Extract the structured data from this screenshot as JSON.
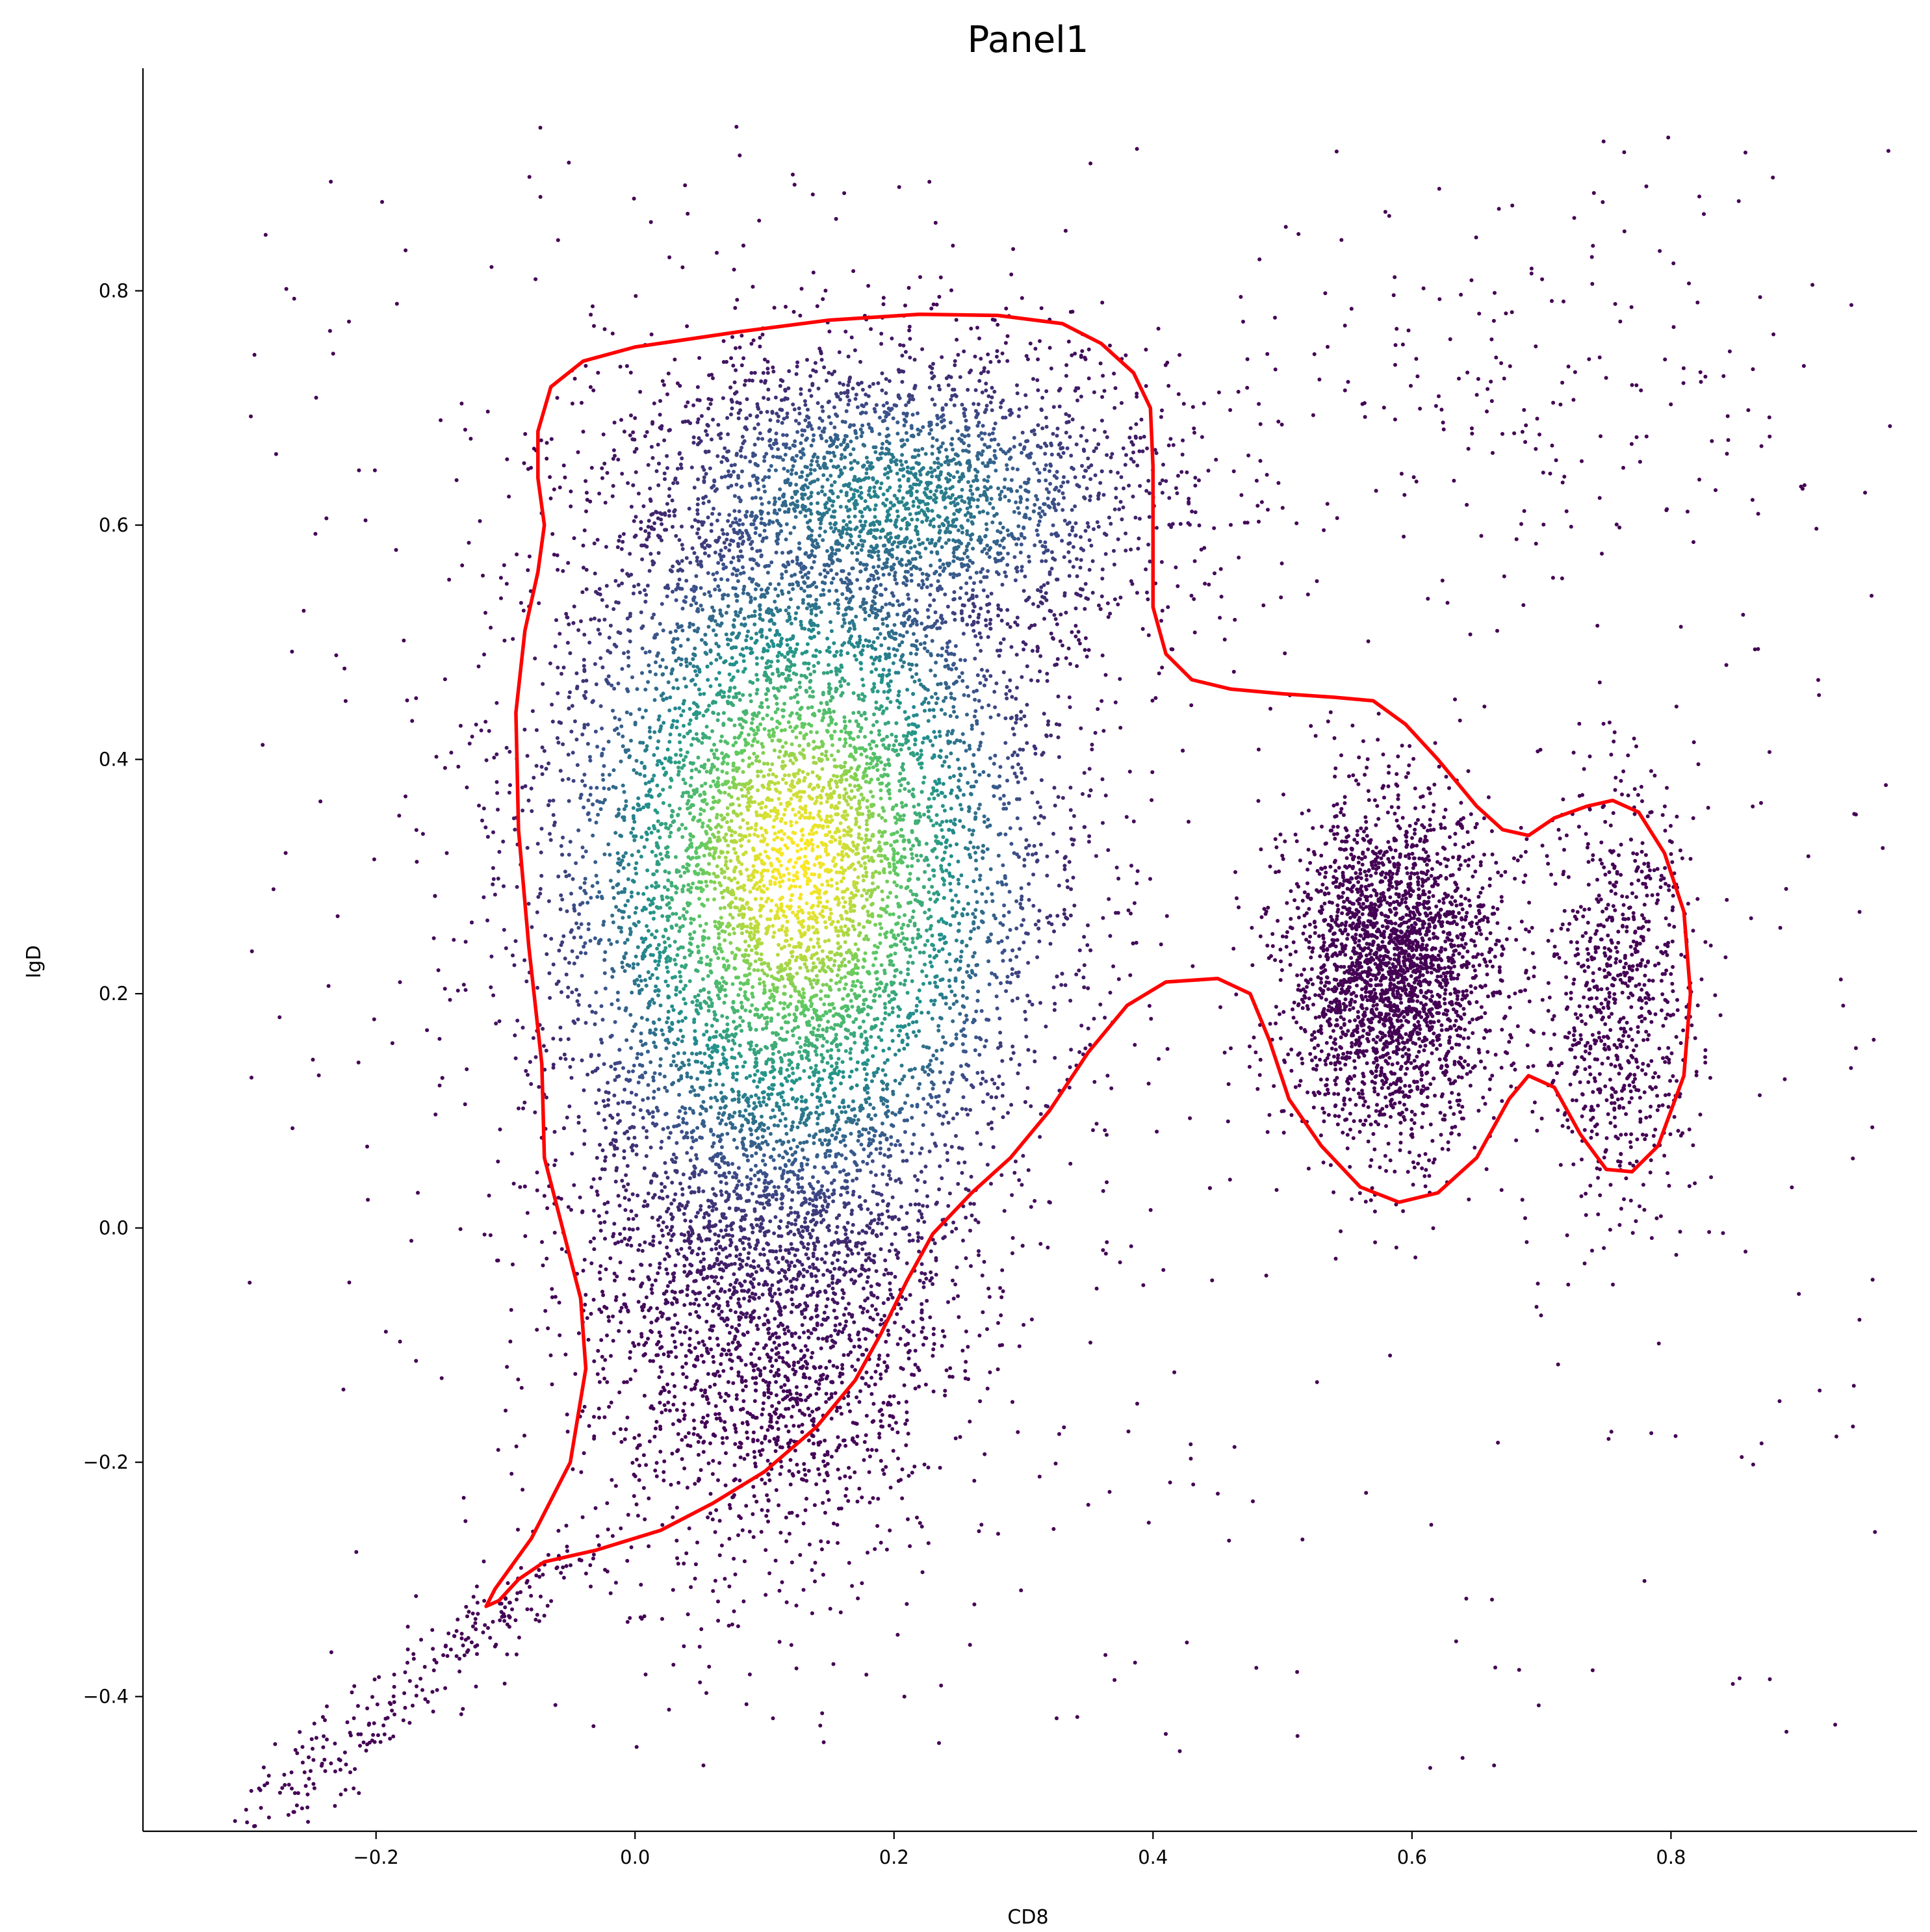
{
  "chart_data": {
    "type": "scatter",
    "title": "Panel1",
    "xlabel": "CD8",
    "ylabel": "IgD",
    "xlim": [
      -0.38,
      0.99
    ],
    "ylim": [
      -0.515,
      0.99
    ],
    "xticks": [
      -0.2,
      0.0,
      0.2,
      0.4,
      0.6,
      0.8
    ],
    "xtick_labels": [
      "−0.2",
      "0.0",
      "0.2",
      "0.4",
      "0.6",
      "0.8"
    ],
    "yticks": [
      -0.4,
      -0.2,
      0.0,
      0.2,
      0.4,
      0.6,
      0.8
    ],
    "ytick_labels": [
      "−0.4",
      "−0.2",
      "0.0",
      "0.2",
      "0.4",
      "0.6",
      "0.8"
    ],
    "grid": false,
    "colormap": "viridis",
    "colormap_stops": [
      "#440154",
      "#3b528b",
      "#21918c",
      "#5ec962",
      "#fde725"
    ],
    "clusters": [
      {
        "name": "",
        "center": [
          0.125,
          0.31
        ],
        "spread": [
          0.1,
          0.16
        ],
        "density": "high"
      },
      {
        "name": "",
        "center": [
          0.2,
          0.62
        ],
        "spread": [
          0.11,
          0.07
        ],
        "density": "medium"
      },
      {
        "name": "",
        "center": [
          0.1,
          -0.05
        ],
        "spread": [
          0.07,
          0.12
        ],
        "density": "medium"
      },
      {
        "name": "",
        "center": [
          0.585,
          0.22
        ],
        "spread": [
          0.04,
          0.07
        ],
        "density": "medium"
      },
      {
        "name": "",
        "center": [
          0.76,
          0.2
        ],
        "spread": [
          0.03,
          0.09
        ],
        "density": "low"
      },
      {
        "name": "",
        "center": [
          0.68,
          0.7
        ],
        "spread": [
          0.12,
          0.08
        ],
        "density": "sparse"
      }
    ],
    "gate": {
      "color": "#ff0000",
      "points": [
        [
          -0.115,
          -0.323
        ],
        [
          -0.105,
          -0.318
        ],
        [
          -0.09,
          -0.3
        ],
        [
          -0.07,
          -0.285
        ],
        [
          -0.03,
          -0.275
        ],
        [
          0.02,
          -0.258
        ],
        [
          0.06,
          -0.235
        ],
        [
          0.1,
          -0.208
        ],
        [
          0.14,
          -0.17
        ],
        [
          0.17,
          -0.13
        ],
        [
          0.19,
          -0.09
        ],
        [
          0.21,
          -0.045
        ],
        [
          0.23,
          -0.005
        ],
        [
          0.26,
          0.03
        ],
        [
          0.29,
          0.06
        ],
        [
          0.32,
          0.1
        ],
        [
          0.35,
          0.15
        ],
        [
          0.38,
          0.19
        ],
        [
          0.41,
          0.21
        ],
        [
          0.45,
          0.213
        ],
        [
          0.475,
          0.2
        ],
        [
          0.49,
          0.16
        ],
        [
          0.505,
          0.11
        ],
        [
          0.53,
          0.07
        ],
        [
          0.56,
          0.035
        ],
        [
          0.59,
          0.022
        ],
        [
          0.62,
          0.03
        ],
        [
          0.65,
          0.06
        ],
        [
          0.675,
          0.11
        ],
        [
          0.69,
          0.13
        ],
        [
          0.71,
          0.12
        ],
        [
          0.73,
          0.08
        ],
        [
          0.75,
          0.05
        ],
        [
          0.77,
          0.048
        ],
        [
          0.79,
          0.07
        ],
        [
          0.81,
          0.13
        ],
        [
          0.815,
          0.2
        ],
        [
          0.81,
          0.27
        ],
        [
          0.795,
          0.32
        ],
        [
          0.775,
          0.355
        ],
        [
          0.755,
          0.365
        ],
        [
          0.735,
          0.36
        ],
        [
          0.71,
          0.35
        ],
        [
          0.69,
          0.335
        ],
        [
          0.67,
          0.34
        ],
        [
          0.65,
          0.36
        ],
        [
          0.62,
          0.4
        ],
        [
          0.595,
          0.43
        ],
        [
          0.57,
          0.45
        ],
        [
          0.54,
          0.453
        ],
        [
          0.5,
          0.456
        ],
        [
          0.46,
          0.46
        ],
        [
          0.43,
          0.468
        ],
        [
          0.41,
          0.49
        ],
        [
          0.4,
          0.53
        ],
        [
          0.4,
          0.58
        ],
        [
          0.4,
          0.65
        ],
        [
          0.398,
          0.7
        ],
        [
          0.385,
          0.73
        ],
        [
          0.36,
          0.755
        ],
        [
          0.33,
          0.772
        ],
        [
          0.28,
          0.779
        ],
        [
          0.22,
          0.78
        ],
        [
          0.15,
          0.775
        ],
        [
          0.08,
          0.765
        ],
        [
          0.0,
          0.752
        ],
        [
          -0.04,
          0.74
        ],
        [
          -0.065,
          0.718
        ],
        [
          -0.075,
          0.68
        ],
        [
          -0.075,
          0.64
        ],
        [
          -0.07,
          0.6
        ],
        [
          -0.075,
          0.56
        ],
        [
          -0.085,
          0.51
        ],
        [
          -0.092,
          0.44
        ],
        [
          -0.09,
          0.34
        ],
        [
          -0.082,
          0.24
        ],
        [
          -0.072,
          0.14
        ],
        [
          -0.07,
          0.06
        ],
        [
          -0.056,
          0.0
        ],
        [
          -0.042,
          -0.06
        ],
        [
          -0.038,
          -0.12
        ],
        [
          -0.05,
          -0.2
        ],
        [
          -0.08,
          -0.265
        ],
        [
          -0.108,
          -0.308
        ]
      ]
    }
  }
}
